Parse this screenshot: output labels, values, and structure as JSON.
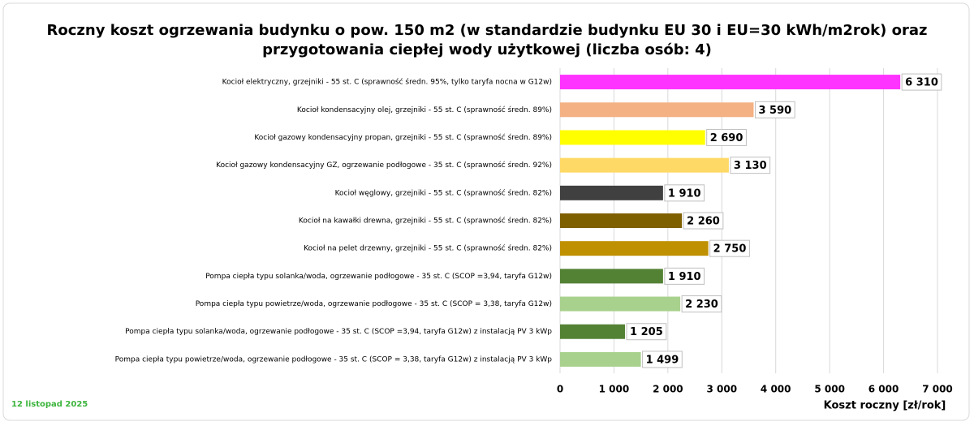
{
  "chart_data": {
    "type": "hbar",
    "title": [
      "Roczny koszt ogrzewania budynku o pow. 150 m2 (w standardzie budynku EU 30 i EU=30 kWh/m2rok) oraz",
      "przygotowania ciepłej wody użytkowej (liczba osób: 4)"
    ],
    "categories": [
      "Kocioł  elektryczny,  grzejniki - 55 st. C  (sprawność średn. 95%, tylko taryfa nocna w G12w)",
      "Kocioł  kondensacyjny olej,  grzejniki - 55 st. C (sprawność średn. 89%)",
      "Kocioł gazowy kondensacyjny propan, grzejniki - 55 st. C (sprawność średn. 89%)",
      "Kocioł gazowy kondensacyjny GZ, ogrzewanie podłogowe - 35 st. C (sprawność średn. 92%)",
      "Kocioł węglowy,  grzejniki - 55 st. C (sprawność średn. 82%)",
      "Kocioł na kawałki drewna, grzejniki - 55 st. C (sprawność średn. 82%)",
      "Kocioł na pelet drzewny, grzejniki - 55 st. C (sprawność średn. 82%)",
      "Pompa ciepła typu solanka/woda, ogrzewanie podłogowe - 35 st. C (SCOP =3,94, taryfa G12w)",
      "Pompa ciepła typu powietrze/woda, ogrzewanie podłogowe - 35 st. C (SCOP = 3,38, taryfa G12w)",
      "Pompa ciepła typu solanka/woda, ogrzewanie podłogowe - 35 st. C (SCOP =3,94, taryfa G12w) z instalacją PV 3 kWp",
      "Pompa ciepła typu powietrze/woda, ogrzewanie podłogowe - 35 st. C (SCOP = 3,38, taryfa G12w) z instalacją PV 3 kWp"
    ],
    "values": [
      6310,
      3590,
      2690,
      3130,
      1910,
      2260,
      2750,
      1910,
      2230,
      1205,
      1499
    ],
    "value_labels": [
      "6 310",
      "3 590",
      "2 690",
      "3 130",
      "1 910",
      "2 260",
      "2 750",
      "1 910",
      "2 230",
      "1 205",
      "1 499"
    ],
    "colors": [
      "#ff33ff",
      "#f4b183",
      "#ffff00",
      "#ffd966",
      "#404040",
      "#7f6000",
      "#bf9000",
      "#548235",
      "#a9d18e",
      "#548235",
      "#a9d18e"
    ],
    "xlim": [
      0,
      7000
    ],
    "xticks": [
      0,
      {
        "value": 1000,
        "label": "1 000"
      },
      {
        "value": 2000,
        "label": "2 000"
      },
      {
        "value": 3000,
        "label": "3 000"
      },
      {
        "value": 4000,
        "label": "4 000"
      },
      {
        "value": 5000,
        "label": "5 000"
      },
      {
        "value": 6000,
        "label": "6 000"
      },
      {
        "value": 7000,
        "label": "7 000"
      }
    ],
    "xlabel": "Koszt roczny [zł/rok]",
    "note": "12 listopad 2025",
    "grid": true
  }
}
